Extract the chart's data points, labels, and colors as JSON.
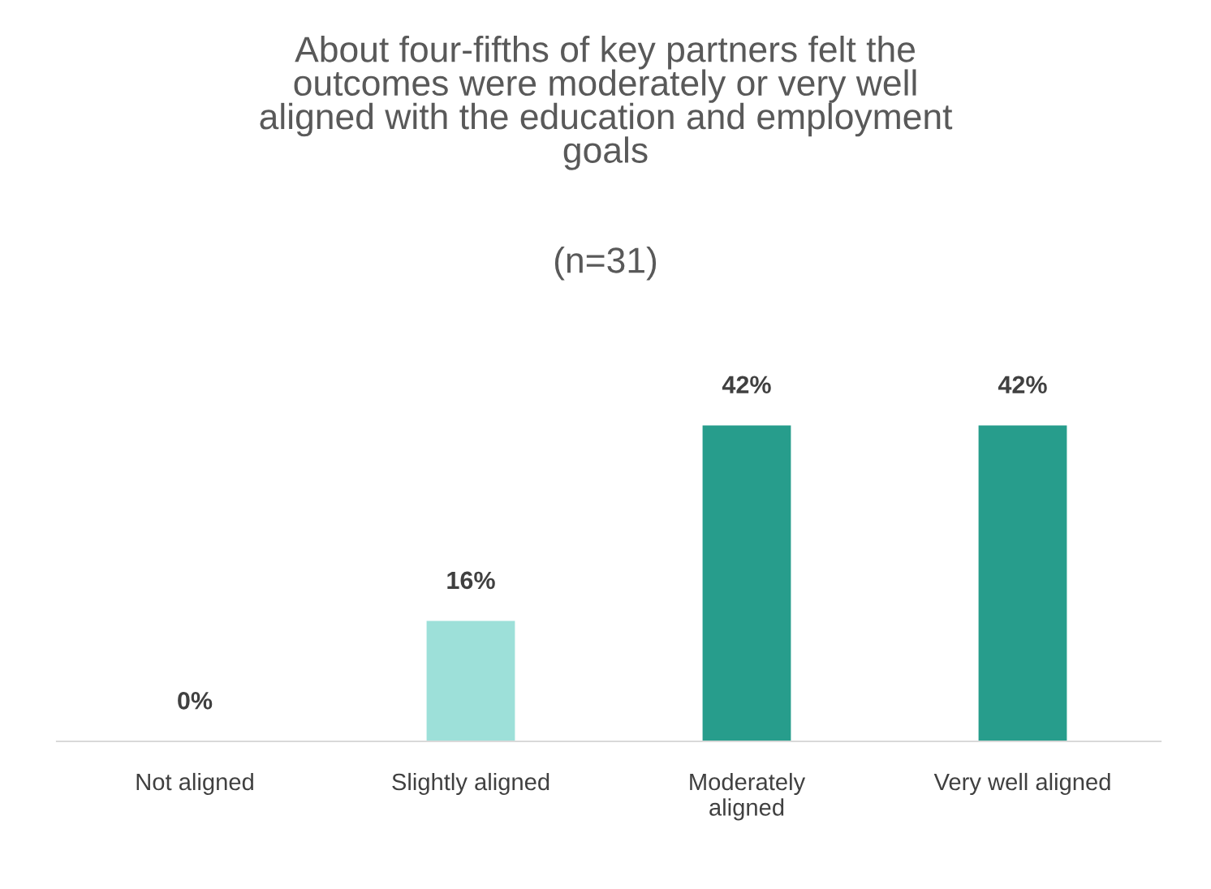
{
  "chart_data": {
    "type": "bar",
    "title": "About four-fifths of key partners felt the\noutcomes were moderately or very well\naligned with the education and employment\ngoals",
    "subtitle": "(n=31)",
    "categories": [
      "Not aligned",
      "Slightly aligned",
      "Moderately\naligned",
      "Very well aligned"
    ],
    "values": [
      0,
      16,
      42,
      42
    ],
    "colors": [
      "#9de0d9",
      "#9de0d9",
      "#279d8c",
      "#279d8c"
    ],
    "value_labels": [
      "0%",
      "16%",
      "42%",
      "42%"
    ],
    "grid": false,
    "legend": false
  }
}
